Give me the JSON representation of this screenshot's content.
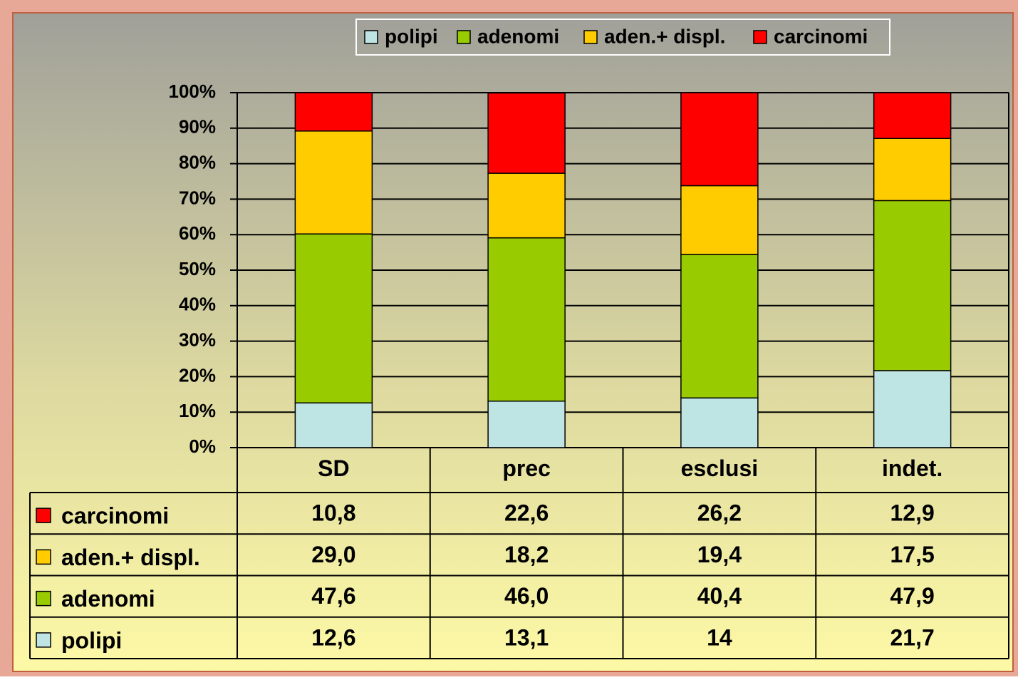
{
  "chart_data": {
    "type": "stacked_bar",
    "categories": [
      "SD",
      "prec",
      "esclusi",
      "indet."
    ],
    "series": [
      {
        "name": "polipi",
        "color": "#bfe4e4",
        "values": [
          12.6,
          13.1,
          14,
          21.7
        ],
        "value_labels": [
          "12,6",
          "13,1",
          "14",
          "21,7"
        ]
      },
      {
        "name": "adenomi",
        "color": "#99cc00",
        "values": [
          47.6,
          46.0,
          40.4,
          47.9
        ],
        "value_labels": [
          "47,6",
          "46,0",
          "40,4",
          "47,9"
        ]
      },
      {
        "name": "aden.+ displ.",
        "color": "#ffcc00",
        "values": [
          29.0,
          18.2,
          19.4,
          17.5
        ],
        "value_labels": [
          "29,0",
          "18,2",
          "19,4",
          "17,5"
        ]
      },
      {
        "name": "carcinomi",
        "color": "#ff0000",
        "values": [
          10.8,
          22.6,
          26.2,
          12.9
        ],
        "value_labels": [
          "10,8",
          "22,6",
          "26,2",
          "12,9"
        ]
      }
    ],
    "ylim": [
      0,
      100
    ],
    "yticks": [
      {
        "value": 0,
        "label": "0%"
      },
      {
        "value": 10,
        "label": "10%"
      },
      {
        "value": 20,
        "label": "20%"
      },
      {
        "value": 30,
        "label": "30%"
      },
      {
        "value": 40,
        "label": "40%"
      },
      {
        "value": 50,
        "label": "50%"
      },
      {
        "value": 60,
        "label": "60%"
      },
      {
        "value": 70,
        "label": "70%"
      },
      {
        "value": 80,
        "label": "80%"
      },
      {
        "value": 90,
        "label": "90%"
      },
      {
        "value": 100,
        "label": "100%"
      }
    ],
    "grid": true,
    "legend": "top"
  }
}
